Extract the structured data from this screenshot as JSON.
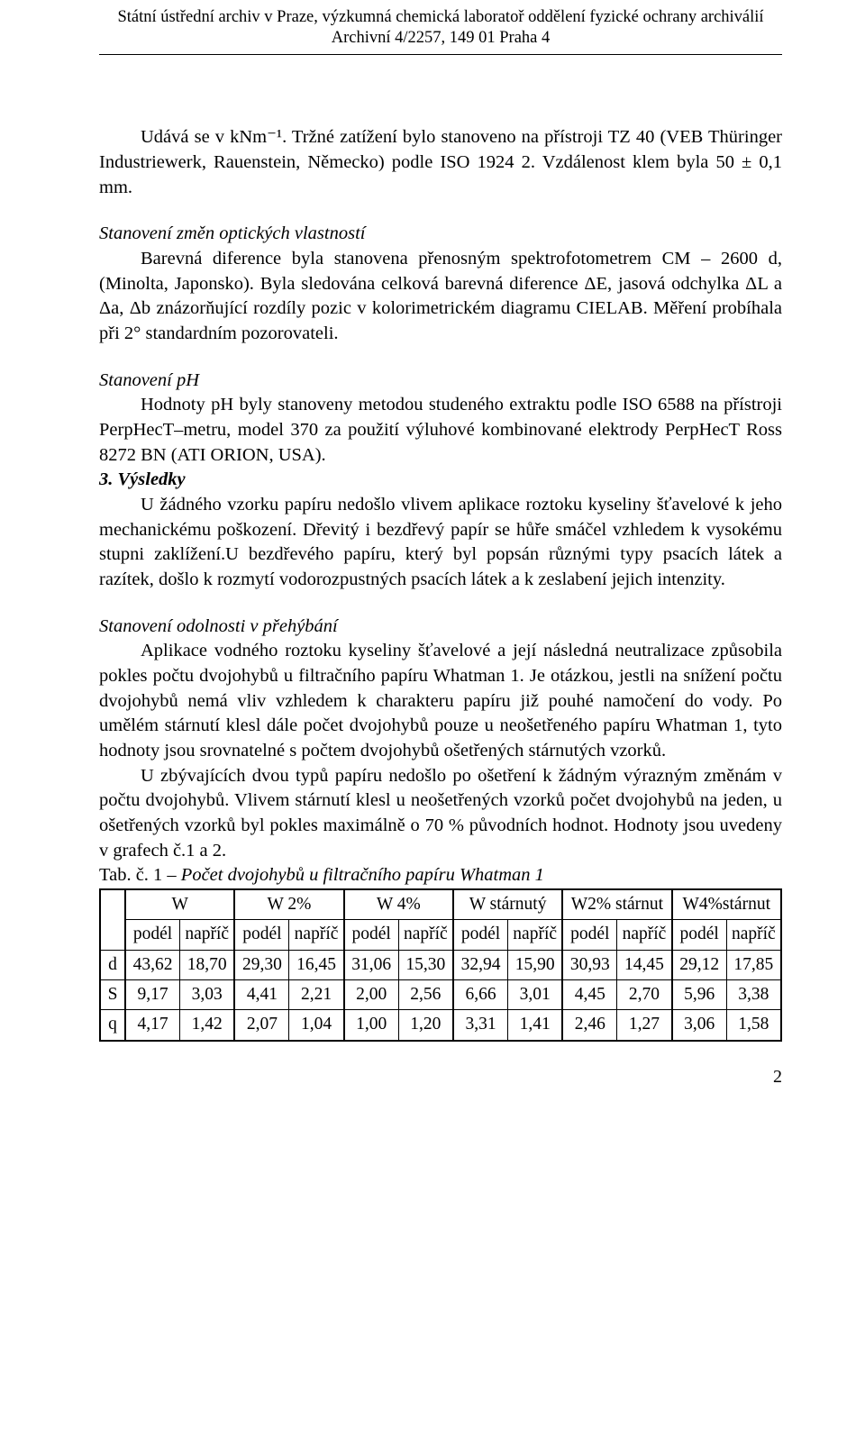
{
  "header": {
    "line1": "Státní ústřední archiv v Praze, výzkumná chemická laboratoř oddělení fyzické ochrany archiválií",
    "line2": "Archivní 4/2257, 149 01 Praha 4"
  },
  "body": {
    "p1": "Udává se v kNm⁻¹. Tržné zatížení bylo stanoveno na přístroji TZ 40 (VEB Thüringer Industriewerk, Rauenstein, Německo) podle ISO 1924 2.  Vzdálenost klem byla 50 ± 0,1 mm.",
    "sub1": "Stanovení změn optických vlastností",
    "p2": "Barevná diference byla stanovena přenosným spektrofotometrem CM – 2600 d, (Minolta, Japonsko). Byla sledována celková barevná diference ΔE, jasová odchylka ΔL a Δa, Δb znázorňující rozdíly pozic v kolorimetrickém diagramu CIELAB. Měření probíhala při 2° standardním pozorovateli.",
    "sub2": "Stanovení pH",
    "p3": "Hodnoty pH byly stanoveny metodou studeného extraktu podle ISO 6588 na přístroji PerpHecT–metru, model 370  za použití výluhové kombinované elektrody PerpHecT Ross 8272 BN (ATI ORION, USA).",
    "section": "3. Výsledky",
    "p4": "U žádného vzorku papíru nedošlo vlivem aplikace roztoku kyseliny šťavelové k jeho mechanickému poškození. Dřevitý i bezdřevý papír se hůře smáčel vzhledem k vysokému stupni zaklížení.U bezdřevého papíru, který byl popsán různými typy psacích látek a razítek, došlo k rozmytí vodorozpustných psacích látek a k zeslabení jejich intenzity.",
    "sub3": "Stanovení odolnosti v přehýbání",
    "p5": "Aplikace vodného roztoku kyseliny šťavelové a její následná neutralizace způsobila pokles počtu dvojohybů u filtračního papíru Whatman 1. Je otázkou, jestli na snížení počtu dvojohybů nemá vliv vzhledem k charakteru papíru již pouhé namočení do vody. Po umělém stárnutí klesl dále počet dvojohybů pouze u neošetřeného papíru Whatman 1, tyto hodnoty jsou srovnatelné s počtem dvojohybů ošetřených stárnutých vzorků.",
    "p6": "U zbývajících dvou typů papíru nedošlo po ošetření k žádným výrazným změnám v počtu dvojohybů. Vlivem stárnutí klesl u neošetřených vzorků počet dvojohybů na jeden, u ošetřených vzorků byl pokles maximálně o 70 % původních hodnot. Hodnoty jsou uvedeny v grafech č.1 a 2."
  },
  "table": {
    "caption_prefix": "Tab. č. 1 – ",
    "caption_text": "Počet dvojohybů u filtračního papíru Whatman 1",
    "groups": [
      "W",
      "W 2%",
      "W 4%",
      "W stárnutý",
      "W2% stárnut",
      "W4%stárnut"
    ],
    "sub_a": "podél",
    "sub_b": "napříč",
    "rows": [
      {
        "label": "d",
        "vals": [
          "43,62",
          "18,70",
          "29,30",
          "16,45",
          "31,06",
          "15,30",
          "32,94",
          "15,90",
          "30,93",
          "14,45",
          "29,12",
          "17,85"
        ]
      },
      {
        "label": "S",
        "vals": [
          "9,17",
          "3,03",
          "4,41",
          "2,21",
          "2,00",
          "2,56",
          "6,66",
          "3,01",
          "4,45",
          "2,70",
          "5,96",
          "3,38"
        ]
      },
      {
        "label": "q",
        "vals": [
          "4,17",
          "1,42",
          "2,07",
          "1,04",
          "1,00",
          "1,20",
          "3,31",
          "1,41",
          "2,46",
          "1,27",
          "3,06",
          "1,58"
        ]
      }
    ]
  },
  "page_number": "2"
}
